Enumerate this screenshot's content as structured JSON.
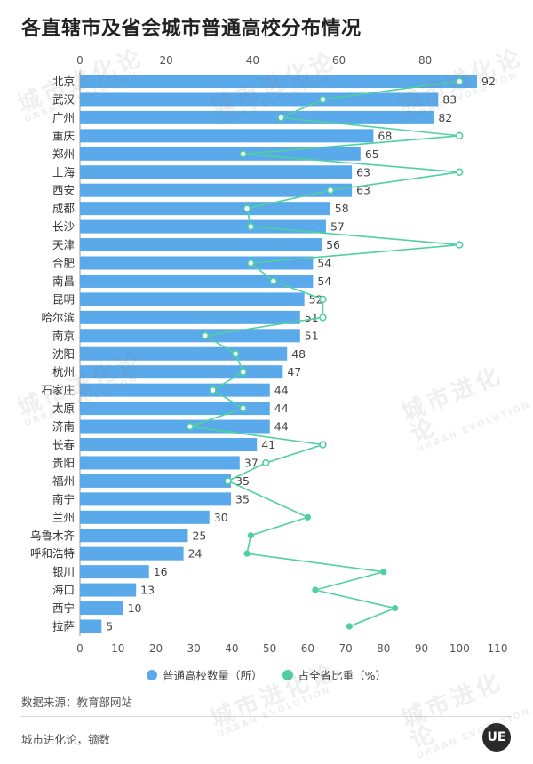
{
  "title": "各直辖市及省会城市普通高校分布情况",
  "legend": {
    "bar_label": "普通高校数量（所）",
    "line_label": "占全省比重（%）",
    "bar_color": "#5aa9ea",
    "line_color": "#4fd0a0"
  },
  "source": "数据来源：教育部网站",
  "credit": "城市进化论，镝数",
  "logo_text": "UE",
  "watermark": {
    "cn": "城市进化论",
    "en": "URBAN EVOLUTION"
  },
  "chart_data": {
    "type": "bar",
    "orientation": "horizontal",
    "categories": [
      "北京",
      "武汉",
      "广州",
      "重庆",
      "郑州",
      "上海",
      "西安",
      "成都",
      "长沙",
      "天津",
      "合肥",
      "南昌",
      "昆明",
      "哈尔滨",
      "南京",
      "沈阳",
      "杭州",
      "石家庄",
      "太原",
      "济南",
      "长春",
      "贵阳",
      "福州",
      "南宁",
      "兰州",
      "乌鲁木齐",
      "呼和浩特",
      "银川",
      "海口",
      "西宁",
      "拉萨"
    ],
    "series": [
      {
        "name": "普通高校数量（所）",
        "type": "bar",
        "axis": "top",
        "values": [
          92,
          83,
          82,
          68,
          65,
          63,
          63,
          58,
          57,
          56,
          54,
          54,
          52,
          51,
          51,
          48,
          47,
          44,
          44,
          44,
          41,
          37,
          35,
          35,
          30,
          25,
          24,
          16,
          13,
          10,
          5
        ]
      },
      {
        "name": "占全省比重（%）",
        "type": "line",
        "axis": "bottom",
        "values": [
          100,
          64,
          53,
          100,
          43,
          100,
          66,
          44,
          45,
          100,
          45,
          51,
          64,
          64,
          33,
          41,
          43,
          35,
          43,
          29,
          64,
          49,
          39,
          null,
          60,
          45,
          44,
          80,
          62,
          83,
          71
        ]
      }
    ],
    "top_axis": {
      "ticks": [
        0,
        20,
        40,
        60,
        80
      ],
      "range": [
        0,
        95
      ]
    },
    "bottom_axis": {
      "ticks": [
        0,
        10,
        20,
        30,
        40,
        50,
        60,
        70,
        80,
        90,
        100,
        110
      ],
      "range": [
        0,
        110
      ]
    },
    "legend_position": "bottom"
  }
}
